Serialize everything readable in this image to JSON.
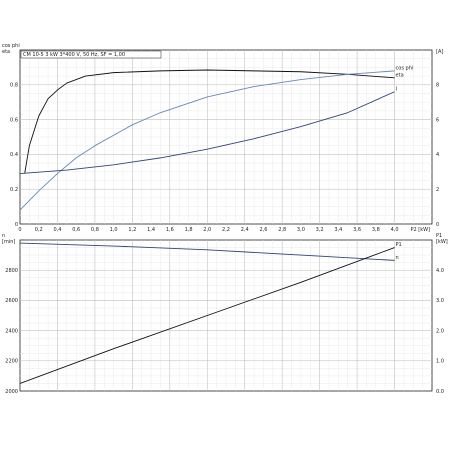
{
  "chart_data": [
    {
      "type": "line",
      "title": "CM 10-5   3 kW   3*400 V, 50 Hz, SF = 1,00",
      "xlabel": "P2 [kW]",
      "left_axis": {
        "label_top": "cos phi",
        "label_bottom": "eta",
        "ylim": [
          0,
          1.0
        ],
        "ticks": [
          0,
          0.2,
          0.4,
          0.6,
          0.8
        ]
      },
      "right_axis": {
        "label": "[A]",
        "ylim": [
          0,
          10
        ],
        "ticks": [
          0,
          2,
          4,
          6,
          8
        ]
      },
      "xlim": [
        0,
        4.4
      ],
      "xticks": [
        0,
        0.2,
        0.4,
        0.6,
        0.8,
        1.0,
        1.2,
        1.4,
        1.6,
        1.8,
        2.0,
        2.2,
        2.4,
        2.6,
        2.8,
        3.0,
        3.2,
        3.4,
        3.6,
        3.8,
        4.0
      ],
      "xtick_labels": [
        "0",
        "0,2",
        "0,4",
        "0,6",
        "0,8",
        "1,0",
        "1,2",
        "1,4",
        "1,6",
        "1,8",
        "2,0",
        "2,2",
        "2,4",
        "2,6",
        "2,8",
        "3,0",
        "3,2",
        "3,4",
        "3,6",
        "3,8",
        "4,0"
      ],
      "series": [
        {
          "name": "eta",
          "axis": "left",
          "color": "#111111",
          "x": [
            0.05,
            0.1,
            0.2,
            0.3,
            0.4,
            0.5,
            0.7,
            1.0,
            1.5,
            2.0,
            2.5,
            3.0,
            3.5,
            4.0
          ],
          "y": [
            0.29,
            0.45,
            0.62,
            0.72,
            0.77,
            0.81,
            0.85,
            0.87,
            0.88,
            0.885,
            0.88,
            0.875,
            0.86,
            0.84
          ]
        },
        {
          "name": "cos phi",
          "axis": "left",
          "color": "#6688bb",
          "x": [
            0.0,
            0.2,
            0.4,
            0.6,
            0.8,
            1.0,
            1.2,
            1.5,
            2.0,
            2.5,
            3.0,
            3.5,
            4.0
          ],
          "y": [
            0.08,
            0.19,
            0.29,
            0.38,
            0.45,
            0.51,
            0.57,
            0.64,
            0.73,
            0.79,
            0.83,
            0.86,
            0.88
          ]
        },
        {
          "name": "I",
          "axis": "right",
          "color": "#334477",
          "x": [
            0.0,
            0.5,
            1.0,
            1.5,
            2.0,
            2.5,
            3.0,
            3.5,
            4.0
          ],
          "y": [
            2.9,
            3.1,
            3.4,
            3.8,
            4.3,
            4.9,
            5.6,
            6.4,
            7.6
          ]
        }
      ]
    },
    {
      "type": "line",
      "xlabel": "",
      "left_axis": {
        "label_top": "n",
        "label_bottom": "[min]",
        "ylim": [
          2000,
          3000
        ],
        "ticks": [
          2000,
          2200,
          2400,
          2600,
          2800
        ]
      },
      "right_axis": {
        "label_top": "P1",
        "label_bottom": "[kW]",
        "ylim": [
          0,
          5
        ],
        "ticks": [
          0.0,
          1.0,
          2.0,
          3.0,
          4.0
        ],
        "tick_labels": [
          "0.0",
          "1.0",
          "2.0",
          "3.0",
          "4.0"
        ]
      },
      "xlim": [
        0,
        4.4
      ],
      "series": [
        {
          "name": "n",
          "axis": "left",
          "color": "#334477",
          "x": [
            0.0,
            1.0,
            2.0,
            3.0,
            4.0
          ],
          "y": [
            2980,
            2960,
            2935,
            2900,
            2865
          ]
        },
        {
          "name": "P1",
          "axis": "right",
          "color": "#111111",
          "x": [
            0.0,
            1.0,
            2.0,
            3.0,
            4.0
          ],
          "y": [
            0.25,
            1.4,
            2.5,
            3.6,
            4.75
          ]
        }
      ]
    }
  ]
}
